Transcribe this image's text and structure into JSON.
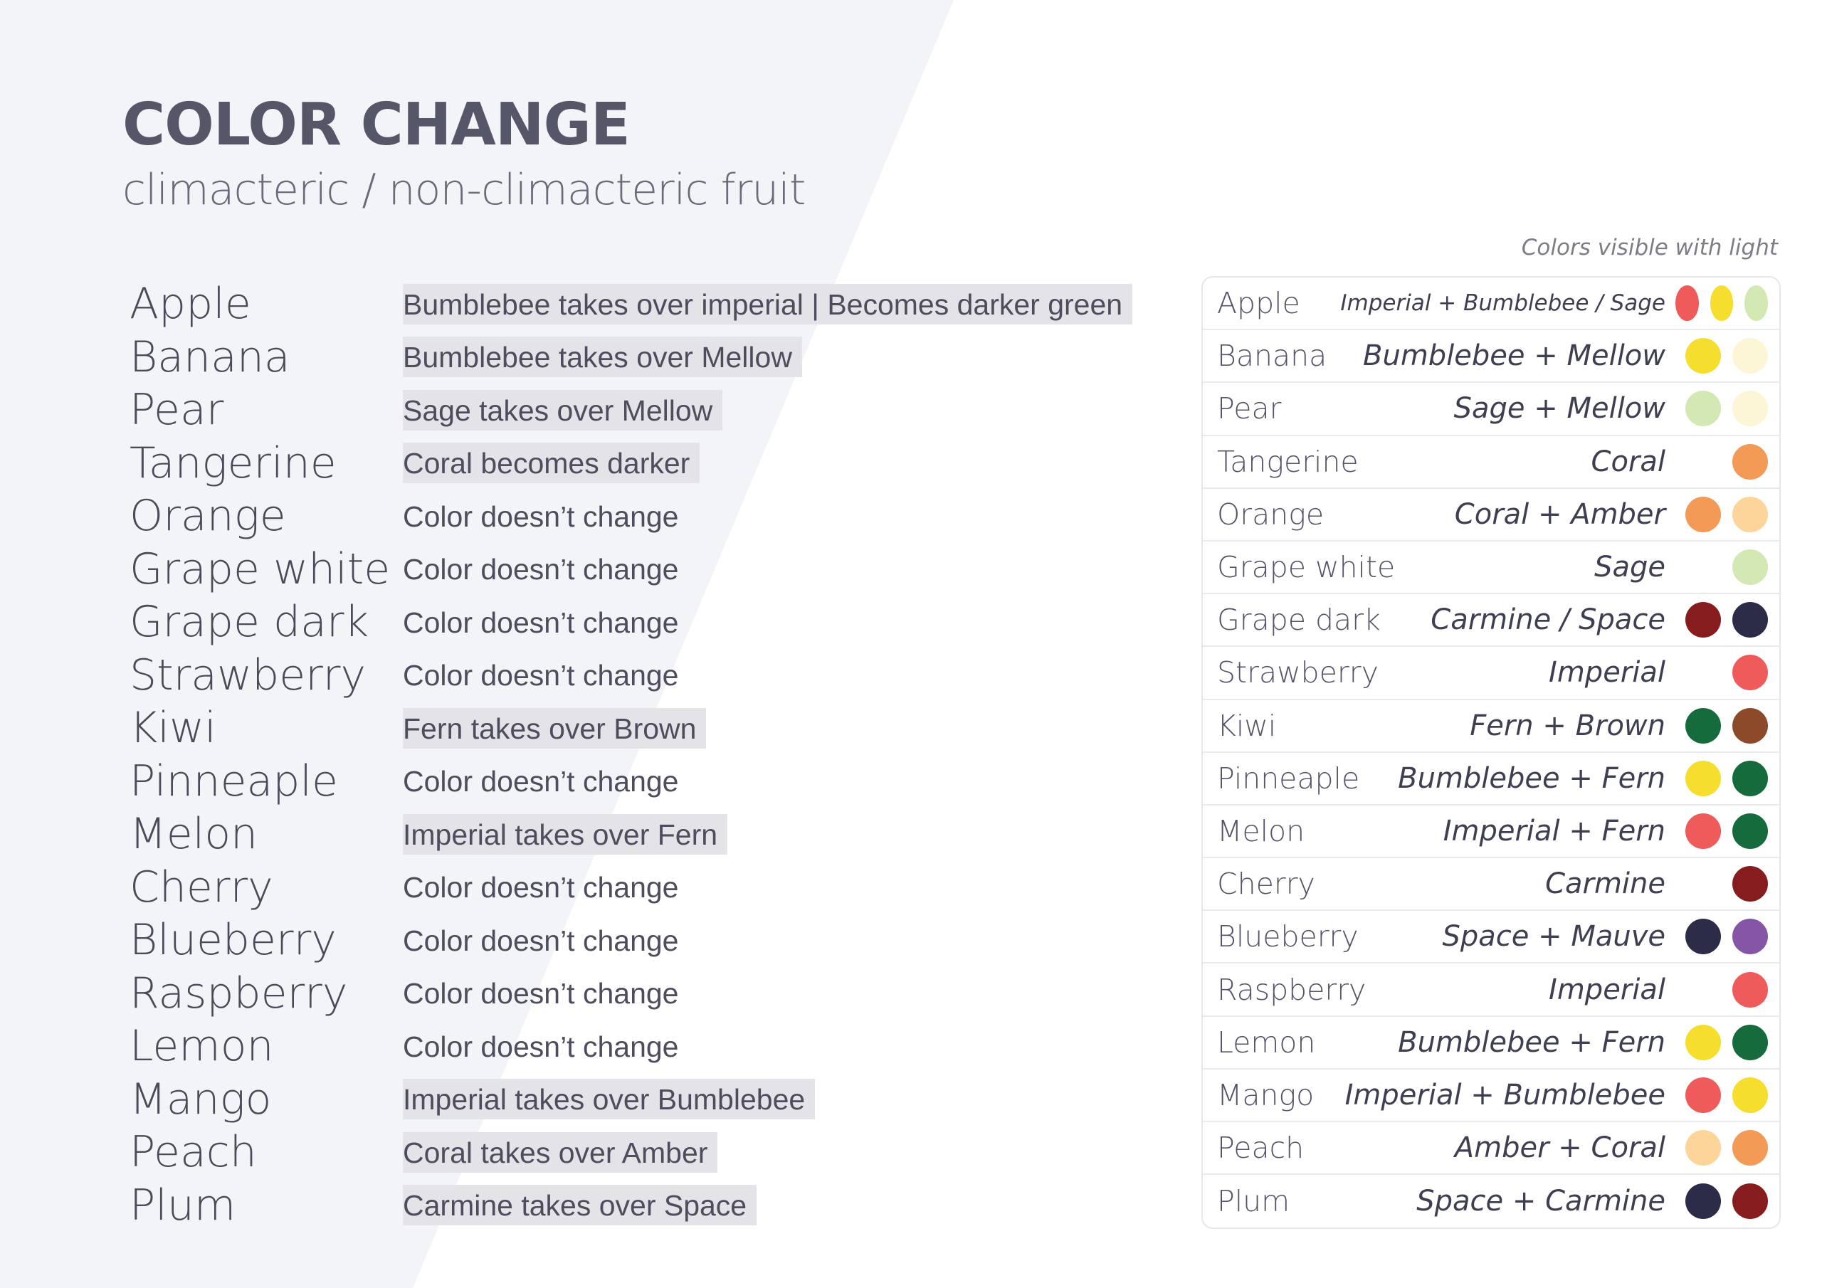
{
  "title": "COLOR CHANGE",
  "subtitle": "climacteric / non-climacteric fruit",
  "legend_note": "Colors visible with light",
  "colors": {
    "Imperial": "#ef5a5a",
    "Bumblebee": "#f5de2e",
    "Sage": "#d4e8b4",
    "Mellow": "#fcf6d6",
    "Coral": "#f29a56",
    "Amber": "#fdd49a",
    "Carmine": "#871c1f",
    "Space": "#2c2c48",
    "Fern": "#166b3c",
    "Brown": "#8c4a2a",
    "Mauve": "#8656a6"
  },
  "fruits": [
    {
      "name": "Apple",
      "change": "Bumblebee takes over imperial | Becomes darker green",
      "highlight": true,
      "table_name": "Apple",
      "table_colors": "Imperial + Bumblebee / Sage",
      "small": true,
      "swatches": [
        "Imperial",
        "Bumblebee",
        "Sage"
      ]
    },
    {
      "name": "Banana",
      "change": "Bumblebee takes over Mellow",
      "highlight": true,
      "table_name": "Banana",
      "table_colors": "Bumblebee + Mellow",
      "swatches": [
        "Bumblebee",
        "Mellow"
      ]
    },
    {
      "name": "Pear",
      "change": "Sage takes over Mellow",
      "highlight": true,
      "table_name": "Pear",
      "table_colors": "Sage + Mellow",
      "swatches": [
        "Sage",
        "Mellow"
      ]
    },
    {
      "name": "Tangerine",
      "change": "Coral becomes darker",
      "highlight": true,
      "table_name": "Tangerine",
      "table_colors": "Coral",
      "swatches": [
        "Coral"
      ]
    },
    {
      "name": "Orange",
      "change": "Color doesn’t change",
      "highlight": false,
      "table_name": "Orange",
      "table_colors": "Coral + Amber",
      "swatches": [
        "Coral",
        "Amber"
      ]
    },
    {
      "name": "Grape white",
      "change": "Color doesn’t change",
      "highlight": false,
      "table_name": "Grape white",
      "table_colors": "Sage",
      "swatches": [
        "Sage"
      ]
    },
    {
      "name": "Grape dark",
      "change": "Color doesn’t change",
      "highlight": false,
      "table_name": "Grape dark",
      "table_colors": "Carmine / Space",
      "swatches": [
        "Carmine",
        "Space"
      ]
    },
    {
      "name": "Strawberry",
      "change": "Color doesn’t change",
      "highlight": false,
      "table_name": "Strawberry",
      "table_colors": "Imperial",
      "swatches": [
        "Imperial"
      ]
    },
    {
      "name": "Kiwi",
      "change": "Fern takes over Brown",
      "highlight": true,
      "table_name": "Kiwi",
      "table_colors": "Fern + Brown",
      "swatches": [
        "Fern",
        "Brown"
      ]
    },
    {
      "name": "Pinneaple",
      "change": "Color doesn’t change",
      "highlight": false,
      "table_name": "Pinneaple",
      "table_colors": "Bumblebee + Fern",
      "swatches": [
        "Bumblebee",
        "Fern"
      ]
    },
    {
      "name": "Melon",
      "change": "Imperial takes over Fern",
      "highlight": true,
      "table_name": "Melon",
      "table_colors": "Imperial + Fern",
      "swatches": [
        "Imperial",
        "Fern"
      ]
    },
    {
      "name": "Cherry",
      "change": "Color doesn’t change",
      "highlight": false,
      "table_name": "Cherry",
      "table_colors": "Carmine",
      "swatches": [
        "Carmine"
      ]
    },
    {
      "name": "Blueberry",
      "change": "Color doesn’t change",
      "highlight": false,
      "table_name": "Blueberry",
      "table_colors": "Space + Mauve",
      "swatches": [
        "Space",
        "Mauve"
      ]
    },
    {
      "name": "Raspberry",
      "change": "Color doesn’t change",
      "highlight": false,
      "table_name": "Raspberry",
      "table_colors": "Imperial",
      "swatches": [
        "Imperial"
      ]
    },
    {
      "name": "Lemon",
      "change": "Color doesn’t change",
      "highlight": false,
      "table_name": "Lemon",
      "table_colors": "Bumblebee + Fern",
      "swatches": [
        "Bumblebee",
        "Fern"
      ]
    },
    {
      "name": "Mango",
      "change": "Imperial takes over Bumblebee",
      "highlight": true,
      "table_name": "Mango",
      "table_colors": "Imperial + Bumblebee",
      "swatches": [
        "Imperial",
        "Bumblebee"
      ]
    },
    {
      "name": "Peach",
      "change": "Coral takes over Amber",
      "highlight": true,
      "table_name": "Peach",
      "table_colors": "Amber + Coral",
      "swatches": [
        "Amber",
        "Coral"
      ]
    },
    {
      "name": "Plum",
      "change": "Carmine takes over Space",
      "highlight": true,
      "table_name": "Plum",
      "table_colors": "Space + Carmine",
      "swatches": [
        "Space",
        "Carmine"
      ]
    }
  ]
}
